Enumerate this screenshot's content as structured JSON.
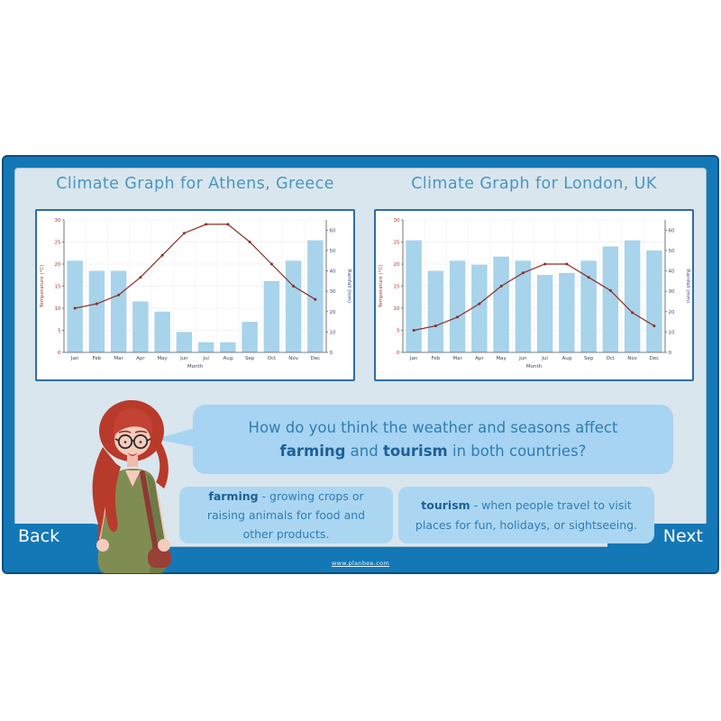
{
  "slide": {
    "background": "#d9e6ed",
    "border_color": "#1478b7",
    "outline_color": "#0a4e7e",
    "title_color": "#4a96c2"
  },
  "nav": {
    "back_label": "Back",
    "next_label": "Next"
  },
  "footer": {
    "url": "www.planbee.com"
  },
  "speech": {
    "bubble_color": "#a7d4f2",
    "segments": [
      {
        "t": "How do you think the weather and seasons affect"
      },
      {
        "br": true
      },
      {
        "t": "farming",
        "b": true
      },
      {
        "t": " and "
      },
      {
        "t": "tourism",
        "b": true
      },
      {
        "t": " in both countries?"
      }
    ]
  },
  "definitions": [
    {
      "segments": [
        {
          "t": "farming",
          "b": true
        },
        {
          "t": " - growing crops or raising animals for food and other products."
        }
      ]
    },
    {
      "segments": [
        {
          "t": "tourism",
          "b": true
        },
        {
          "t": " - when people travel to visit places for fun, holidays, or sightseeing."
        }
      ]
    }
  ],
  "chart_data": [
    {
      "type": "combo",
      "title": "Climate Graph for Athens, Greece",
      "categories": [
        "Jan",
        "Feb",
        "Mar",
        "Apr",
        "May",
        "Jun",
        "Jul",
        "Aug",
        "Sep",
        "Oct",
        "Nov",
        "Dec"
      ],
      "xlabel": "Month",
      "grid": true,
      "legend": false,
      "y_left": {
        "label": "Temperature (°C)",
        "range": [
          0,
          30
        ],
        "ticks": [
          0,
          5,
          10,
          15,
          20,
          25,
          30
        ],
        "color": "#a03a2e"
      },
      "y_right": {
        "label": "Rainfall (mm)",
        "range": [
          0,
          65
        ],
        "ticks": [
          0,
          10,
          20,
          30,
          40,
          50,
          60
        ],
        "color": "#3c4a85"
      },
      "series": [
        {
          "name": "Rainfall (mm)",
          "type": "bar",
          "axis": "right",
          "color": "#a7d3eb",
          "values": [
            45,
            40,
            40,
            25,
            20,
            10,
            5,
            5,
            15,
            35,
            45,
            55
          ]
        },
        {
          "name": "Temperature (°C)",
          "type": "line",
          "axis": "left",
          "color": "#8b2e24",
          "values": [
            10,
            11,
            13,
            17,
            22,
            27,
            29,
            29,
            25,
            20,
            15,
            12
          ]
        }
      ]
    },
    {
      "type": "combo",
      "title": "Climate Graph for London, UK",
      "categories": [
        "Jan",
        "Feb",
        "Mar",
        "Apr",
        "May",
        "Jun",
        "Jul",
        "Aug",
        "Sep",
        "Oct",
        "Nov",
        "Dec"
      ],
      "xlabel": "Month",
      "grid": true,
      "legend": false,
      "y_left": {
        "label": "Temperature (°C)",
        "range": [
          0,
          30
        ],
        "ticks": [
          0,
          5,
          10,
          15,
          20,
          25,
          30
        ],
        "color": "#a03a2e"
      },
      "y_right": {
        "label": "Rainfall (mm)",
        "range": [
          0,
          65
        ],
        "ticks": [
          0,
          10,
          20,
          30,
          40,
          50,
          60
        ],
        "color": "#3c4a85"
      },
      "series": [
        {
          "name": "Rainfall (mm)",
          "type": "bar",
          "axis": "right",
          "color": "#a7d3eb",
          "values": [
            55,
            40,
            45,
            43,
            47,
            45,
            38,
            39,
            45,
            52,
            55,
            50
          ]
        },
        {
          "name": "Temperature (°C)",
          "type": "line",
          "axis": "left",
          "color": "#8b2e24",
          "values": [
            5,
            6,
            8,
            11,
            15,
            18,
            20,
            20,
            17,
            14,
            9,
            6
          ]
        }
      ]
    }
  ]
}
